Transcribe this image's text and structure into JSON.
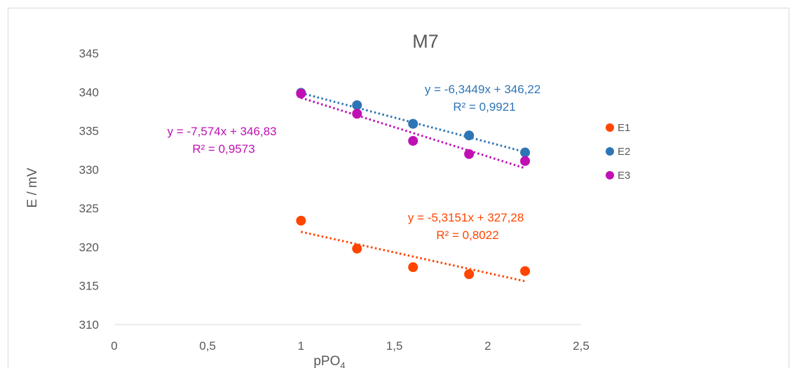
{
  "chart_data": {
    "type": "scatter",
    "title": "M7",
    "xlabel": {
      "main": "pPO",
      "subscript": "4"
    },
    "ylabel": "E / mV",
    "xlim": [
      0,
      2.5
    ],
    "ylim": [
      310,
      345
    ],
    "x_ticks": [
      "0",
      "0,5",
      "1",
      "1,5",
      "2",
      "2,5"
    ],
    "x_tick_values": [
      0,
      0.5,
      1,
      1.5,
      2,
      2.5
    ],
    "y_ticks": [
      "310",
      "315",
      "320",
      "325",
      "330",
      "335",
      "340",
      "345"
    ],
    "y_tick_values": [
      310,
      315,
      320,
      325,
      330,
      335,
      340,
      345
    ],
    "grid": {
      "horizontal": false,
      "vertical": false
    },
    "legend_position": "right",
    "series": [
      {
        "name": "E1",
        "color": "#ff4500",
        "x": [
          1,
          1.3,
          1.6,
          1.9,
          2.2
        ],
        "y": [
          323.4,
          319.8,
          317.4,
          316.5,
          316.9
        ],
        "trendline": {
          "slope": -5.3151,
          "intercept": 327.28,
          "style": "dotted"
        },
        "equation": "y = -5,3151x + 327,28",
        "r2": "R² = 0,8022"
      },
      {
        "name": "E2",
        "color": "#2e75b6",
        "x": [
          1,
          1.3,
          1.6,
          1.9,
          2.2
        ],
        "y": [
          339.9,
          338.3,
          335.9,
          334.4,
          332.2
        ],
        "trendline": {
          "slope": -6.3449,
          "intercept": 346.22,
          "style": "dotted"
        },
        "equation": "y = -6,3449x + 346,22",
        "r2": "R² = 0,9921"
      },
      {
        "name": "E3",
        "color": "#c010b4",
        "x": [
          1,
          1.3,
          1.6,
          1.9,
          2.2
        ],
        "y": [
          339.8,
          337.2,
          333.7,
          332.0,
          331.1
        ],
        "trendline": {
          "slope": -7.574,
          "intercept": 346.83,
          "style": "dotted"
        },
        "equation": "y = -7,574x + 346,83",
        "r2": "R² = 0,9573"
      }
    ]
  }
}
